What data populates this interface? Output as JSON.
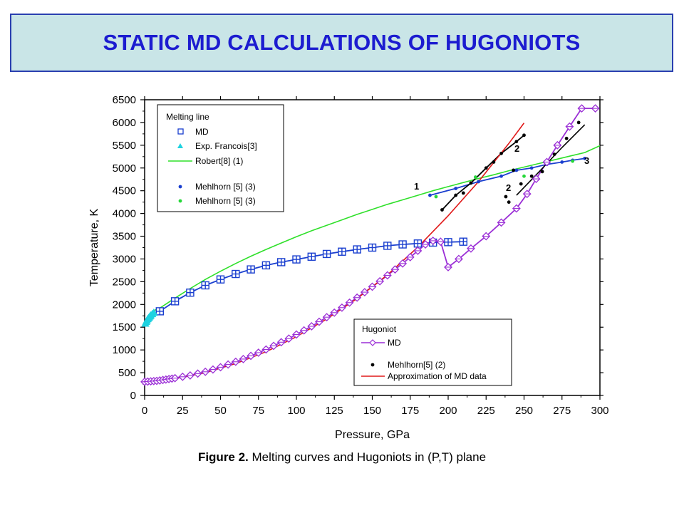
{
  "slide_title": "STATIC MD CALCULATIONS OF HUGONIOTS",
  "caption": {
    "label": "Figure 2.",
    "text": " Melting curves and Hugoniots in (P,T) plane"
  },
  "colors": {
    "title_text": "#1c1cd0",
    "title_bg": "#c9e5e7",
    "title_border": "#2a3fb0",
    "md_melting": "#1a3fcf",
    "exp_francois": "#1fd2e0",
    "robert": "#2fe02a",
    "mehlhorn_blue": "#1a3fcf",
    "mehlhorn_green": "#27d83a",
    "hugoniot_md": "#9b2fd6",
    "mehlhorn_black": "#000000",
    "approx": "#e01818"
  },
  "chart_data": {
    "type": "line",
    "xlabel": "Pressure, GPa",
    "ylabel": "Temperature, K",
    "xlim": [
      0,
      300
    ],
    "ylim": [
      0,
      6500
    ],
    "xticks": [
      0,
      25,
      50,
      75,
      100,
      125,
      150,
      175,
      200,
      225,
      250,
      275,
      300
    ],
    "yticks": [
      0,
      500,
      1000,
      1500,
      2000,
      2500,
      3000,
      3500,
      4000,
      4500,
      5000,
      5500,
      6000,
      6500
    ],
    "legends": [
      {
        "title": "Melting line",
        "entries": [
          "MD",
          "Exp. Francois[3]",
          "Robert[8] (1)",
          "Mehlhorn [5] (3)",
          "Mehlhorn [5] (3)"
        ]
      },
      {
        "title": "Hugoniot",
        "entries": [
          "MD",
          "Mehlhorn[5] (2)",
          "Approximation of MD data"
        ]
      }
    ],
    "annotations": [
      "1",
      "2",
      "2",
      "3"
    ],
    "series": [
      {
        "name": "MD",
        "group": "Melting line",
        "style": "squares-line",
        "color": "#1a3fcf",
        "x": [
          10,
          20,
          30,
          40,
          50,
          60,
          70,
          80,
          90,
          100,
          110,
          120,
          130,
          140,
          150,
          160,
          170,
          180,
          190,
          200,
          210
        ],
        "y": [
          1850,
          2070,
          2260,
          2420,
          2550,
          2670,
          2770,
          2860,
          2930,
          2990,
          3050,
          3110,
          3160,
          3210,
          3250,
          3290,
          3320,
          3340,
          3360,
          3370,
          3380
        ]
      },
      {
        "name": "Exp. Francois[3]",
        "group": "Melting line",
        "style": "triangles",
        "color": "#1fd2e0",
        "x": [
          0.5,
          1,
          1.5,
          2,
          2.5,
          3,
          3.5,
          4,
          5,
          6
        ],
        "y": [
          1580,
          1620,
          1650,
          1680,
          1700,
          1720,
          1740,
          1760,
          1790,
          1820
        ]
      },
      {
        "name": "Robert[8] (1)",
        "group": "Melting line",
        "style": "line",
        "color": "#2fe02a",
        "x": [
          5,
          10,
          20,
          30,
          40,
          50,
          60,
          70,
          80,
          90,
          100,
          110,
          120,
          130,
          140,
          150,
          160,
          170,
          180,
          190,
          200,
          210,
          220,
          230,
          240,
          250,
          260,
          270,
          280,
          290,
          300
        ],
        "y": [
          1850,
          1920,
          2140,
          2350,
          2550,
          2730,
          2900,
          3060,
          3210,
          3350,
          3490,
          3620,
          3740,
          3860,
          3980,
          4090,
          4200,
          4300,
          4400,
          4500,
          4590,
          4680,
          4770,
          4850,
          4940,
          5020,
          5100,
          5180,
          5260,
          5340,
          5490
        ]
      },
      {
        "name": "Mehlhorn [5] (3)",
        "group": "Melting line",
        "style": "dots-line",
        "color": "#1a3fcf",
        "x": [
          188,
          205,
          220,
          235,
          245,
          255,
          265,
          275,
          282,
          290
        ],
        "y": [
          4400,
          4550,
          4700,
          4820,
          4950,
          5000,
          5080,
          5130,
          5170,
          5210
        ]
      },
      {
        "name": "Mehlhorn [5] (3)",
        "group": "Melting line",
        "style": "dots",
        "color": "#27d83a",
        "x": [
          192,
          218,
          250,
          265,
          282
        ],
        "y": [
          4370,
          4800,
          4820,
          5130,
          5150
        ]
      },
      {
        "name": "MD",
        "group": "Hugoniot",
        "style": "diamonds-line",
        "color": "#9b2fd6",
        "x": [
          0,
          2,
          4,
          6,
          8,
          10,
          12,
          14,
          16,
          18,
          20,
          25,
          30,
          35,
          40,
          45,
          50,
          55,
          60,
          65,
          70,
          75,
          80,
          85,
          90,
          95,
          100,
          105,
          110,
          115,
          120,
          125,
          130,
          135,
          140,
          145,
          150,
          155,
          160,
          165,
          170,
          175,
          180,
          185,
          190,
          195,
          200,
          207,
          215,
          225,
          235,
          245,
          252,
          258,
          265,
          272,
          280,
          288,
          297
        ],
        "y": [
          300,
          305,
          310,
          315,
          320,
          330,
          340,
          350,
          360,
          370,
          380,
          410,
          440,
          480,
          520,
          570,
          620,
          680,
          740,
          800,
          870,
          940,
          1010,
          1090,
          1170,
          1250,
          1340,
          1430,
          1520,
          1620,
          1720,
          1820,
          1930,
          2040,
          2150,
          2270,
          2390,
          2510,
          2640,
          2770,
          2900,
          3040,
          3180,
          3320,
          3400,
          3380,
          2820,
          3000,
          3230,
          3500,
          3800,
          4110,
          4430,
          4760,
          5130,
          5500,
          5910,
          6310,
          6310
        ]
      },
      {
        "name": "Mehlhorn[5] (2)",
        "group": "Hugoniot",
        "style": "dots-line",
        "color": "#000000",
        "x": [
          196,
          205,
          215,
          225,
          235,
          245,
          250
        ],
        "y": [
          4080,
          4400,
          4670,
          5000,
          5320,
          5580,
          5720
        ]
      },
      {
        "name": "Mehlhorn[5] (2)",
        "group": "Hugoniot",
        "style": "dots",
        "color": "#000000",
        "x": [
          210,
          230,
          238,
          240,
          243,
          248,
          255,
          262,
          270,
          278,
          286
        ],
        "y": [
          4450,
          5130,
          4370,
          4250,
          4950,
          4650,
          4820,
          4920,
          5300,
          5650,
          6000
        ]
      },
      {
        "name": "Mehlhorn[5] (2)",
        "group": "Hugoniot",
        "style": "line",
        "color": "#000000",
        "x": [
          245,
          260,
          275,
          290
        ],
        "y": [
          4400,
          4920,
          5450,
          5950
        ]
      },
      {
        "name": "Approximation of MD data",
        "group": "Hugoniot",
        "style": "line",
        "color": "#e01818",
        "x": [
          0,
          20,
          40,
          60,
          80,
          100,
          120,
          140,
          160,
          180,
          200,
          220,
          240,
          250
        ],
        "y": [
          300,
          370,
          500,
          700,
          960,
          1290,
          1680,
          2130,
          2650,
          3260,
          3950,
          4700,
          5540,
          5990
        ]
      }
    ]
  }
}
